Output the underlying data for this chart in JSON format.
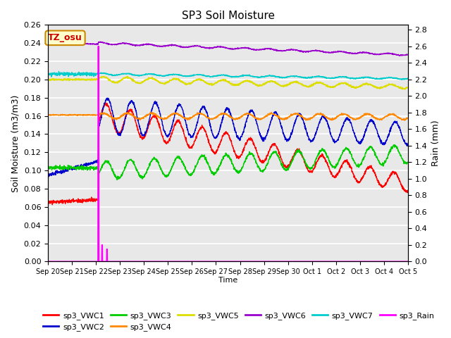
{
  "title": "SP3 Soil Moisture",
  "xlabel": "Time",
  "ylabel_left": "Soil Moisture (m3/m3)",
  "ylabel_right": "Rain (mm)",
  "xlim": [
    0,
    15
  ],
  "ylim_left": [
    0.0,
    0.26
  ],
  "ylim_right": [
    0.0,
    2.86
  ],
  "background_color": "#e8e8e8",
  "tick_labels": [
    "Sep 20",
    "Sep 21",
    "Sep 22",
    "Sep 23",
    "Sep 24",
    "Sep 25",
    "Sep 26",
    "Sep 27",
    "Sep 28",
    "Sep 29",
    "Sep 30",
    "Oct 1",
    "Oct 2",
    "Oct 3",
    "Oct 4",
    "Oct 5"
  ],
  "tz_label": "TZ_osu",
  "colors": {
    "sp3_VWC1": "#ff0000",
    "sp3_VWC2": "#0000cc",
    "sp3_VWC3": "#00cc00",
    "sp3_VWC4": "#ff8800",
    "sp3_VWC5": "#dddd00",
    "sp3_VWC6": "#9900cc",
    "sp3_VWC7": "#00cccc",
    "sp3_Rain": "#ff00ff"
  },
  "legend_order": [
    "sp3_VWC1",
    "sp3_VWC2",
    "sp3_VWC3",
    "sp3_VWC4",
    "sp3_VWC5",
    "sp3_VWC6",
    "sp3_VWC7",
    "sp3_Rain"
  ]
}
